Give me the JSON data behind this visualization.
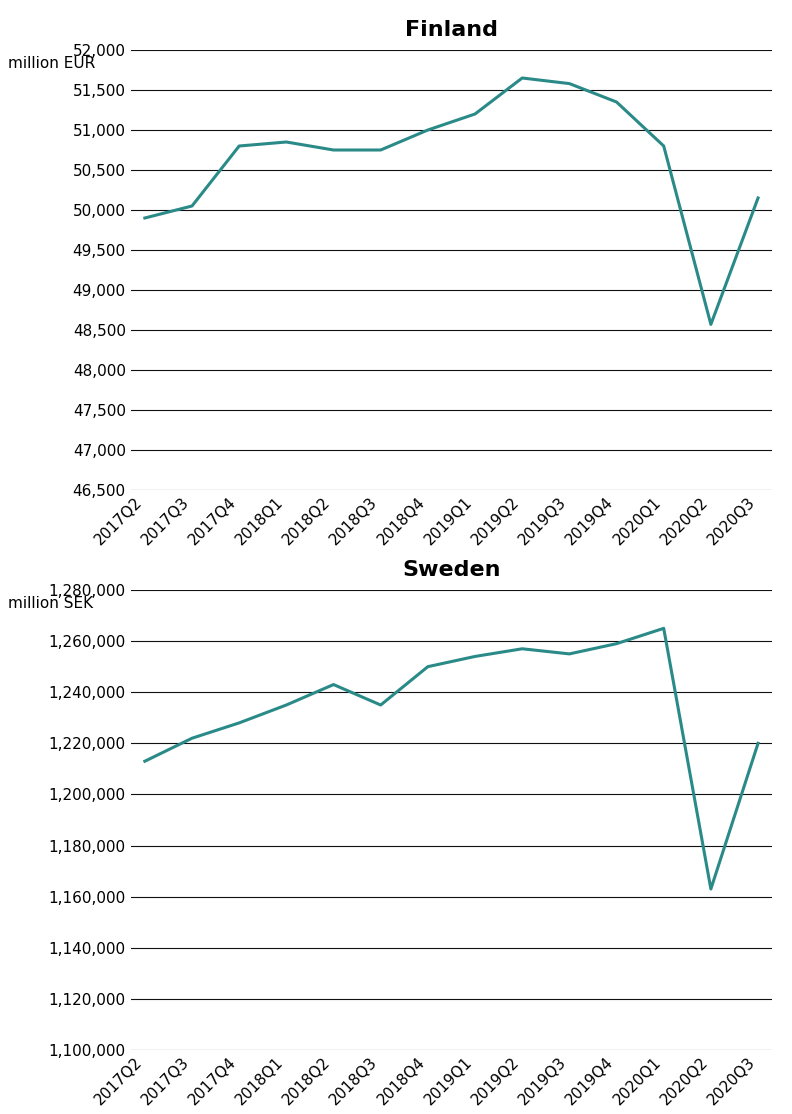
{
  "quarters": [
    "2017Q2",
    "2017Q3",
    "2017Q4",
    "2018Q1",
    "2018Q2",
    "2018Q3",
    "2018Q4",
    "2019Q1",
    "2019Q2",
    "2019Q3",
    "2019Q4",
    "2020Q1",
    "2020Q2",
    "2020Q3"
  ],
  "finland_values": [
    49900,
    50050,
    50800,
    50850,
    50750,
    50750,
    51000,
    51200,
    51650,
    51580,
    51350,
    50800,
    48570,
    50150
  ],
  "sweden_values": [
    1213000,
    1222000,
    1228000,
    1235000,
    1243000,
    1235000,
    1250000,
    1254000,
    1257000,
    1255000,
    1259000,
    1265000,
    1163000,
    1220000
  ],
  "finland_title": "Finland",
  "sweden_title": "Sweden",
  "finland_ylabel": "million EUR",
  "sweden_ylabel": "million SEK",
  "finland_ylim": [
    46500,
    52000
  ],
  "finland_yticks": [
    46500,
    47000,
    47500,
    48000,
    48500,
    49000,
    49500,
    50000,
    50500,
    51000,
    51500,
    52000
  ],
  "sweden_ylim": [
    1100000,
    1280000
  ],
  "sweden_yticks": [
    1100000,
    1120000,
    1140000,
    1160000,
    1180000,
    1200000,
    1220000,
    1240000,
    1260000,
    1280000
  ],
  "line_color": "#2a8a88",
  "line_width": 2.2,
  "bg_color": "#ffffff",
  "grid_color": "#111111",
  "grid_linewidth": 0.8,
  "title_fontsize": 16,
  "label_fontsize": 11,
  "tick_fontsize": 11,
  "ytick_fontsize": 11
}
